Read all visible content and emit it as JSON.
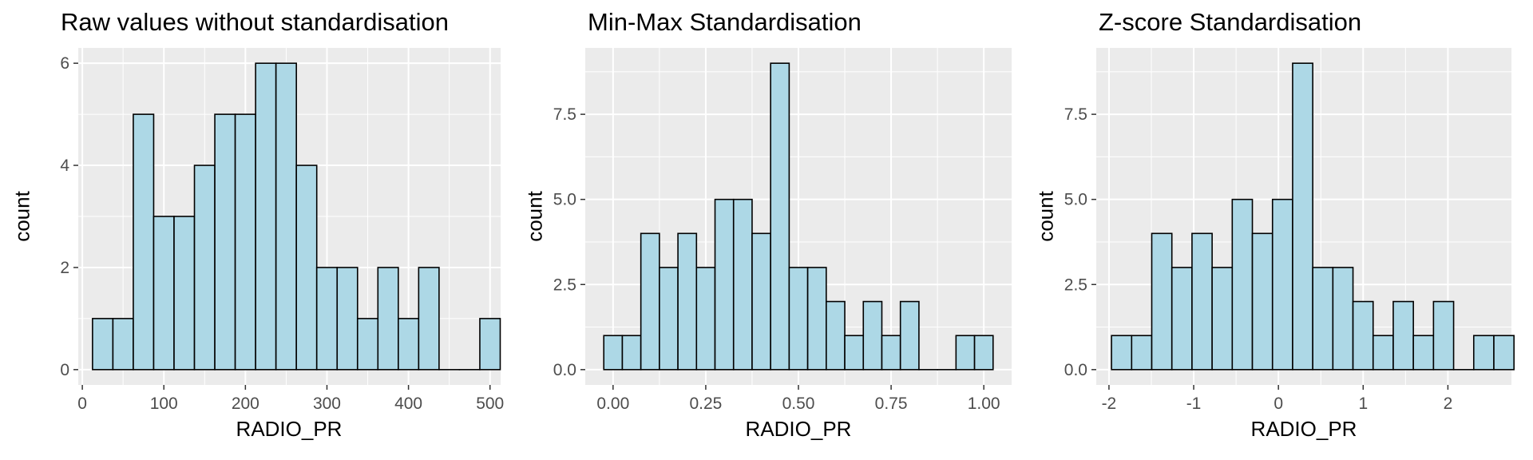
{
  "chart_data": [
    {
      "type": "bar",
      "title": "Raw values without standardisation",
      "xlabel": "RADIO_PR",
      "ylabel": "count",
      "bin_width": 25,
      "bins_start": [
        12.5,
        37.5,
        62.5,
        87.5,
        112.5,
        137.5,
        162.5,
        187.5,
        212.5,
        237.5,
        262.5,
        287.5,
        312.5,
        337.5,
        362.5,
        387.5,
        412.5,
        437.5,
        462.5,
        487.5
      ],
      "values": [
        1,
        1,
        5,
        3,
        3,
        4,
        5,
        5,
        6,
        6,
        4,
        2,
        2,
        1,
        2,
        1,
        2,
        0,
        0,
        1
      ],
      "xlim": [
        -5,
        513
      ],
      "ylim": [
        -0.3,
        6.3
      ],
      "xticks": [
        0,
        100,
        200,
        300,
        400,
        500
      ],
      "xtick_labels": [
        "0",
        "100",
        "200",
        "300",
        "400",
        "500"
      ],
      "yticks": [
        0,
        2,
        4,
        6
      ],
      "ytick_labels": [
        "0",
        "2",
        "4",
        "6"
      ]
    },
    {
      "type": "bar",
      "title": "Min-Max Standardisation",
      "xlabel": "RADIO_PR",
      "ylabel": "count",
      "bin_width": 0.05,
      "bins_start": [
        -0.025,
        0.025,
        0.075,
        0.125,
        0.175,
        0.225,
        0.275,
        0.325,
        0.375,
        0.425,
        0.475,
        0.525,
        0.575,
        0.625,
        0.675,
        0.725,
        0.775,
        0.825,
        0.875,
        0.925,
        0.975
      ],
      "values": [
        1,
        1,
        4,
        3,
        4,
        3,
        5,
        5,
        4,
        9,
        3,
        3,
        2,
        1,
        2,
        1,
        2,
        0,
        0,
        1,
        1
      ],
      "xlim": [
        -0.075,
        1.075
      ],
      "ylim": [
        -0.45,
        9.45
      ],
      "xticks": [
        0,
        0.25,
        0.5,
        0.75,
        1
      ],
      "xtick_labels": [
        "0.00",
        "0.25",
        "0.50",
        "0.75",
        "1.00"
      ],
      "yticks": [
        0,
        2.5,
        5,
        7.5
      ],
      "ytick_labels": [
        "0.0",
        "2.5",
        "5.0",
        "7.5"
      ]
    },
    {
      "type": "bar",
      "title": "Z-score Standardisation",
      "xlabel": "RADIO_PR",
      "ylabel": "count",
      "bin_width": 0.2375,
      "bins_start": [
        -1.97,
        -1.7325,
        -1.495,
        -1.2575,
        -1.02,
        -0.7825,
        -0.545,
        -0.3075,
        -0.07,
        0.1675,
        0.405,
        0.6425,
        0.88,
        1.1175,
        1.355,
        1.5925,
        1.83,
        2.0675,
        2.305,
        2.5425
      ],
      "values": [
        1,
        1,
        4,
        3,
        4,
        3,
        5,
        4,
        5,
        9,
        3,
        3,
        2,
        1,
        2,
        1,
        2,
        0,
        1,
        1
      ],
      "xlim": [
        -2.15,
        2.75
      ],
      "ylim": [
        -0.45,
        9.45
      ],
      "xticks": [
        -2,
        -1,
        0,
        1,
        2
      ],
      "xtick_labels": [
        "-2",
        "-1",
        "0",
        "1",
        "2"
      ],
      "yticks": [
        0,
        2.5,
        5,
        7.5
      ],
      "ytick_labels": [
        "0.0",
        "2.5",
        "5.0",
        "7.5"
      ]
    }
  ],
  "colors": {
    "bar_fill": "#add8e6",
    "bar_stroke": "#000000",
    "panel_bg": "#ebebeb",
    "grid": "#ffffff",
    "tick_text": "#4d4d4d"
  }
}
